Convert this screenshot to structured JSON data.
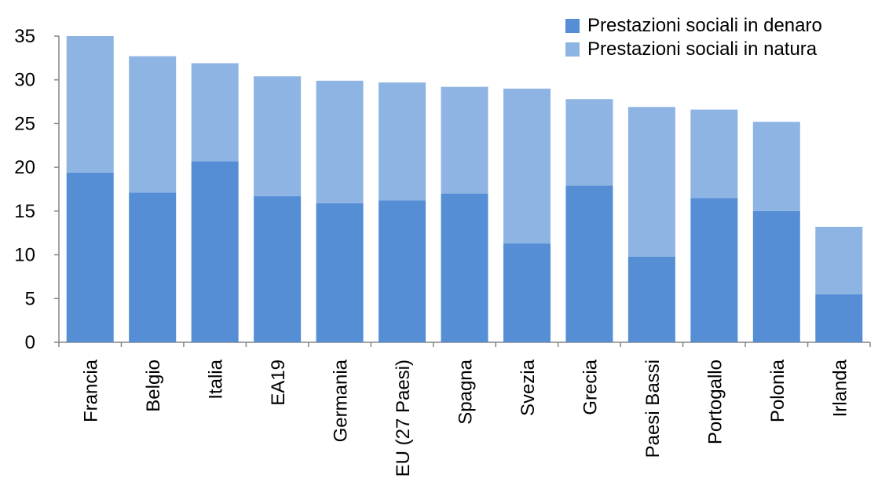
{
  "chart_data": {
    "type": "bar",
    "stacked": true,
    "title": "",
    "xlabel": "",
    "ylabel": "",
    "ylim": [
      0,
      35
    ],
    "yticks": [
      0,
      5,
      10,
      15,
      20,
      25,
      30,
      35
    ],
    "grid": false,
    "legend": "top-right",
    "categories": [
      "Francia",
      "Belgio",
      "Italia",
      "EA19",
      "Germania",
      "EU (27 Paesi)",
      "Spagna",
      "Svezia",
      "Grecia",
      "Paesi Bassi",
      "Portogallo",
      "Polonia",
      "Irlanda"
    ],
    "series": [
      {
        "name": "Prestazioni sociali in denaro",
        "color": "#558ed5",
        "values": [
          19.4,
          17.1,
          20.7,
          16.7,
          15.9,
          16.2,
          17.0,
          11.3,
          17.9,
          9.8,
          16.5,
          15.0,
          5.5
        ]
      },
      {
        "name": "Prestazioni sociali in natura",
        "color": "#8eb4e3",
        "values": [
          15.6,
          15.6,
          11.2,
          13.7,
          14.0,
          13.5,
          12.2,
          17.7,
          9.9,
          17.1,
          10.1,
          10.2,
          7.7
        ]
      }
    ]
  }
}
